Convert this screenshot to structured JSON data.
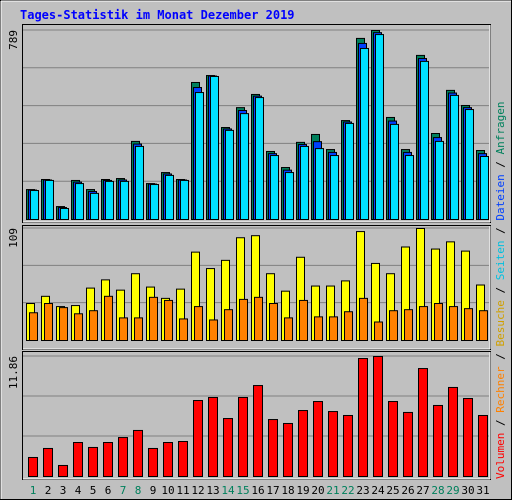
{
  "chart_data": [
    {
      "type": "bar",
      "title": "Tages-Statistik im Monat Dezember 2019",
      "ylim": [
        0,
        789
      ],
      "yticks": [
        789
      ],
      "series": [
        {
          "name": "Anfragen",
          "color": "#00805c",
          "values": [
            125,
            167,
            54,
            163,
            125,
            167,
            171,
            326,
            150,
            196,
            167,
            572,
            601,
            384,
            467,
            522,
            284,
            217,
            322,
            355,
            292,
            413,
            756,
            789,
            426,
            292,
            685,
            359,
            539,
            476,
            288
          ]
        },
        {
          "name": "Dateien",
          "color": "#0040ff",
          "values": [
            123,
            165,
            50,
            156,
            117,
            163,
            165,
            315,
            148,
            190,
            165,
            551,
            599,
            378,
            455,
            515,
            275,
            206,
            313,
            325,
            280,
            407,
            735,
            780,
            411,
            280,
            672,
            342,
            528,
            467,
            275
          ]
        },
        {
          "name": "Seiten",
          "color": "#00e0ff",
          "values": [
            121,
            163,
            46,
            150,
            109,
            159,
            159,
            305,
            146,
            184,
            163,
            530,
            597,
            372,
            442,
            509,
            267,
            196,
            305,
            296,
            267,
            401,
            714,
            772,
            397,
            267,
            660,
            326,
            518,
            459,
            263
          ]
        }
      ]
    },
    {
      "type": "bar",
      "ylim": [
        0,
        109
      ],
      "yticks": [
        109
      ],
      "series": [
        {
          "name": "Besuche",
          "color": "#ffff00",
          "values": [
            36,
            43,
            33,
            34,
            51,
            59,
            49,
            65,
            52,
            41,
            50,
            86,
            70,
            78,
            100,
            102,
            65,
            48,
            81,
            53,
            53,
            58,
            106,
            75,
            65,
            91,
            109,
            89,
            96,
            87,
            54
          ]
        },
        {
          "name": "Rechner",
          "color": "#ff8000",
          "values": [
            27,
            36,
            32,
            26,
            29,
            43,
            22,
            22,
            42,
            39,
            21,
            33,
            20,
            30,
            40,
            42,
            36,
            22,
            39,
            23,
            23,
            28,
            41,
            18,
            29,
            30,
            33,
            36,
            33,
            31,
            29
          ]
        }
      ]
    },
    {
      "type": "bar",
      "ylim": [
        0,
        11.86
      ],
      "yticks": [
        11.86
      ],
      "categories": [
        "1",
        "2",
        "3",
        "4",
        "5",
        "6",
        "7",
        "8",
        "9",
        "10",
        "11",
        "12",
        "13",
        "14",
        "15",
        "16",
        "17",
        "18",
        "19",
        "20",
        "21",
        "22",
        "23",
        "24",
        "25",
        "26",
        "27",
        "28",
        "29",
        "30",
        "31"
      ],
      "category_colors": [
        "#00805c",
        "#000000",
        "#000000",
        "#000000",
        "#000000",
        "#000000",
        "#00805c",
        "#00805c",
        "#000000",
        "#000000",
        "#000000",
        "#000000",
        "#000000",
        "#00805c",
        "#00805c",
        "#000000",
        "#000000",
        "#000000",
        "#000000",
        "#000000",
        "#00805c",
        "#00805c",
        "#000000",
        "#000000",
        "#000000",
        "#000000",
        "#000000",
        "#00805c",
        "#00805c",
        "#000000",
        "#000000"
      ],
      "series": [
        {
          "name": "Volumen",
          "color": "#ff0000",
          "values": [
            1.88,
            2.77,
            1.09,
            3.36,
            2.87,
            3.36,
            3.85,
            4.55,
            2.77,
            3.36,
            3.46,
            7.51,
            7.81,
            5.73,
            7.81,
            8.99,
            5.63,
            5.24,
            6.52,
            7.41,
            6.42,
            6.03,
            11.66,
            11.86,
            7.41,
            6.33,
            10.67,
            7.02,
            8.8,
            7.71,
            6.03
          ]
        }
      ]
    }
  ]
}
